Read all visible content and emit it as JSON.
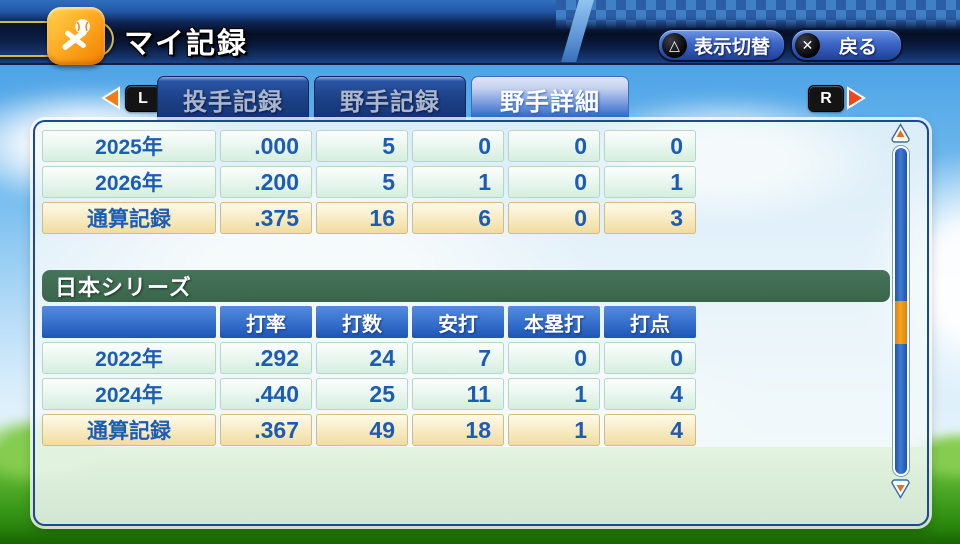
{
  "header": {
    "title": "マイ記録",
    "icon": "baseball-and-bats-icon",
    "buttons": [
      {
        "glyph": "△",
        "label": "表示切替"
      },
      {
        "glyph": "✕",
        "label": "戻る"
      }
    ]
  },
  "tabs": {
    "left_bumper": "L",
    "right_bumper": "R",
    "items": [
      {
        "label": "投手記録",
        "active": false
      },
      {
        "label": "野手記録",
        "active": false
      },
      {
        "label": "野手詳細",
        "active": true
      }
    ]
  },
  "main": {
    "tables": [
      {
        "section_title": null,
        "columns": null,
        "rows": [
          {
            "label": "2025年",
            "values": [
              ".000",
              "5",
              "0",
              "0",
              "0"
            ],
            "total": false
          },
          {
            "label": "2026年",
            "values": [
              ".200",
              "5",
              "1",
              "0",
              "1"
            ],
            "total": false
          },
          {
            "label": "通算記録",
            "values": [
              ".375",
              "16",
              "6",
              "0",
              "3"
            ],
            "total": true
          }
        ]
      },
      {
        "section_title": "日本シリーズ",
        "columns": [
          "打率",
          "打数",
          "安打",
          "本塁打",
          "打点"
        ],
        "rows": [
          {
            "label": "2022年",
            "values": [
              ".292",
              "24",
              "7",
              "0",
              "0"
            ],
            "total": false
          },
          {
            "label": "2024年",
            "values": [
              ".440",
              "25",
              "11",
              "1",
              "4"
            ],
            "total": false
          },
          {
            "label": "通算記録",
            "values": [
              ".367",
              "49",
              "18",
              "1",
              "4"
            ],
            "total": true
          }
        ]
      }
    ]
  },
  "colors": {
    "accent_orange": "#f7a21e",
    "table_text": "#1d5cb4",
    "section_green": "#45745a",
    "total_row_gold": "#f1dda0"
  }
}
